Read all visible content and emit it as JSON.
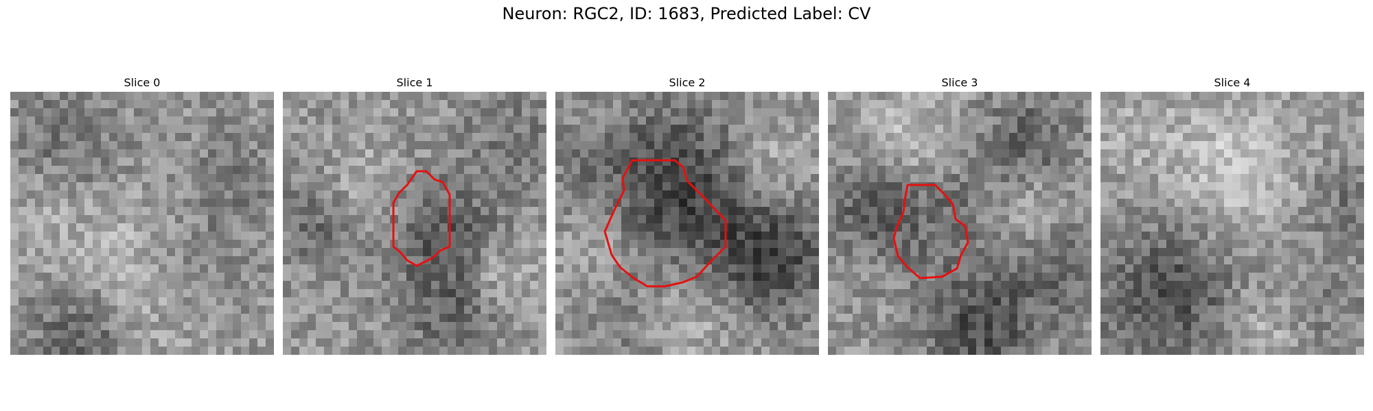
{
  "figure": {
    "title": "Neuron: RGC2, ID: 1683, Predicted Label: CV",
    "outline_color": "#e61010",
    "colormap": "grayscale",
    "panels": [
      {
        "title": "Slice 0",
        "seed": 11,
        "has_outline": false
      },
      {
        "title": "Slice 1",
        "seed": 23,
        "has_outline": true
      },
      {
        "title": "Slice 2",
        "seed": 37,
        "has_outline": true
      },
      {
        "title": "Slice 3",
        "seed": 41,
        "has_outline": true
      },
      {
        "title": "Slice 4",
        "seed": 53,
        "has_outline": false
      }
    ]
  }
}
